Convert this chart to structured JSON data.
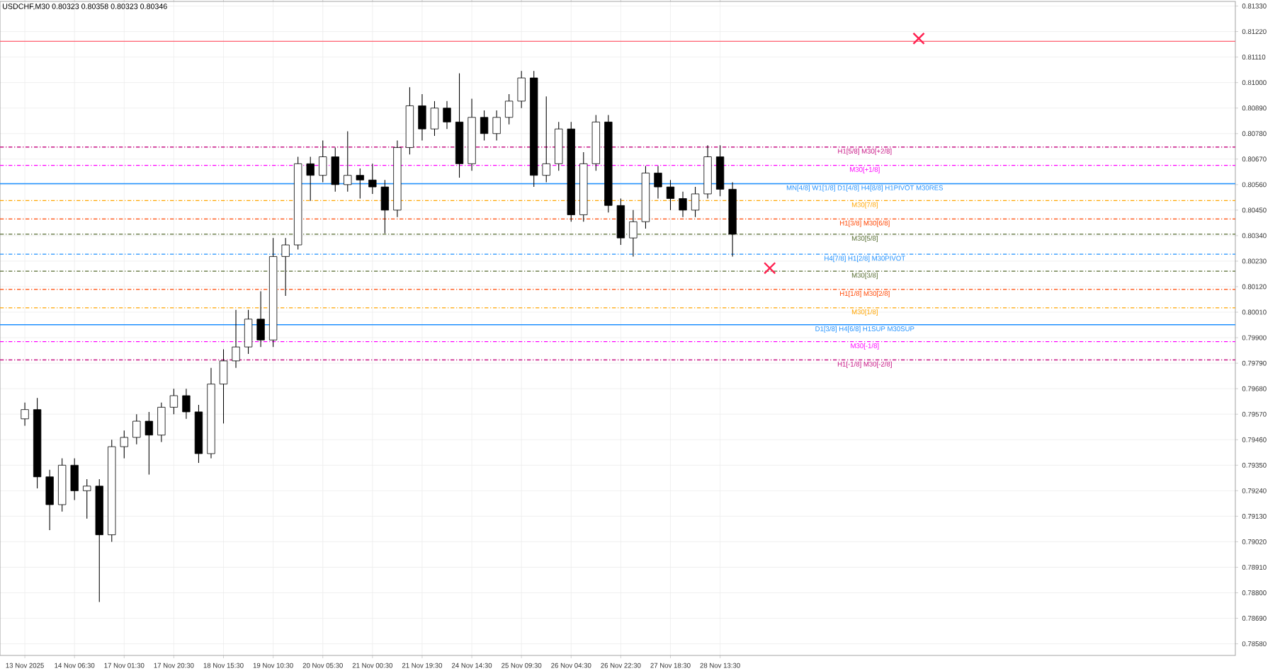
{
  "chart_data": {
    "type": "candlestick",
    "title": "USDCHF,M30 0.80323 0.80358 0.80323 0.80346",
    "categories": [
      "13 Nov 2025",
      null,
      null,
      null,
      "14 Nov 06:30",
      null,
      null,
      null,
      "17 Nov 01:30",
      null,
      null,
      null,
      "17 Nov 20:30",
      null,
      null,
      null,
      "18 Nov 15:30",
      null,
      null,
      null,
      "19 Nov 10:30",
      null,
      null,
      null,
      "20 Nov 05:30",
      null,
      null,
      null,
      "21 Nov 00:30",
      null,
      null,
      null,
      "21 Nov 19:30",
      null,
      null,
      null,
      "24 Nov 14:30",
      null,
      null,
      null,
      "25 Nov 09:30",
      null,
      null,
      null,
      "26 Nov 04:30",
      null,
      null,
      null,
      "26 Nov 22:30",
      null,
      null,
      null,
      "27 Nov 18:30",
      null,
      null,
      null,
      "28 Nov 13:30",
      null,
      null,
      null,
      null,
      null,
      null,
      null,
      null,
      null,
      null,
      null,
      null,
      null,
      null,
      null,
      null,
      null,
      null,
      null,
      null,
      null,
      null,
      null,
      null,
      null,
      null,
      null,
      null,
      null,
      null,
      null,
      null,
      null,
      null,
      null,
      null,
      null,
      null,
      null,
      null,
      null
    ],
    "ohlc": [
      [
        0.7955,
        0.7962,
        0.7952,
        0.7959
      ],
      [
        0.7959,
        0.7964,
        0.7925,
        0.793
      ],
      [
        0.793,
        0.7933,
        0.7907,
        0.7918
      ],
      [
        0.7918,
        0.7938,
        0.7915,
        0.7935
      ],
      [
        0.7935,
        0.7938,
        0.792,
        0.7924
      ],
      [
        0.7924,
        0.7929,
        0.7912,
        0.7926
      ],
      [
        0.7926,
        0.7929,
        0.7876,
        0.7905
      ],
      [
        0.7905,
        0.7946,
        0.7902,
        0.7943
      ],
      [
        0.7943,
        0.795,
        0.7938,
        0.7947
      ],
      [
        0.7947,
        0.7957,
        0.7944,
        0.7954
      ],
      [
        0.7954,
        0.7958,
        0.7931,
        0.7948
      ],
      [
        0.7948,
        0.7962,
        0.7945,
        0.796
      ],
      [
        0.796,
        0.7968,
        0.7957,
        0.7965
      ],
      [
        0.7965,
        0.7968,
        0.7955,
        0.7958
      ],
      [
        0.7958,
        0.7961,
        0.7936,
        0.794
      ],
      [
        0.794,
        0.7977,
        0.7938,
        0.797
      ],
      [
        0.797,
        0.7985,
        0.7953,
        0.798
      ],
      [
        0.798,
        0.8002,
        0.7977,
        0.7986
      ],
      [
        0.7986,
        0.8002,
        0.7983,
        0.7998
      ],
      [
        0.7998,
        0.801,
        0.7986,
        0.7989
      ],
      [
        0.7989,
        0.8033,
        0.7986,
        0.8025
      ],
      [
        0.8025,
        0.8033,
        0.8008,
        0.803
      ],
      [
        0.803,
        0.8068,
        0.8028,
        0.8065
      ],
      [
        0.8065,
        0.8068,
        0.8049,
        0.806
      ],
      [
        0.806,
        0.8075,
        0.8057,
        0.8068
      ],
      [
        0.8068,
        0.8072,
        0.8053,
        0.8056
      ],
      [
        0.8056,
        0.8079,
        0.8053,
        0.806
      ],
      [
        0.806,
        0.8063,
        0.805,
        0.8058
      ],
      [
        0.8058,
        0.8065,
        0.8052,
        0.8055
      ],
      [
        0.8055,
        0.8058,
        0.8035,
        0.8045
      ],
      [
        0.8045,
        0.8075,
        0.8042,
        0.8072
      ],
      [
        0.8072,
        0.8098,
        0.8069,
        0.809
      ],
      [
        0.809,
        0.8095,
        0.8075,
        0.808
      ],
      [
        0.808,
        0.8092,
        0.8077,
        0.8089
      ],
      [
        0.8089,
        0.8092,
        0.808,
        0.8083
      ],
      [
        0.8083,
        0.8104,
        0.8059,
        0.8065
      ],
      [
        0.8065,
        0.8093,
        0.8062,
        0.8085
      ],
      [
        0.8085,
        0.8088,
        0.8075,
        0.8078
      ],
      [
        0.8078,
        0.8088,
        0.8075,
        0.8085
      ],
      [
        0.8085,
        0.8095,
        0.8082,
        0.8092
      ],
      [
        0.8092,
        0.8105,
        0.8089,
        0.8102
      ],
      [
        0.8102,
        0.8105,
        0.8055,
        0.806
      ],
      [
        0.806,
        0.8094,
        0.8057,
        0.8065
      ],
      [
        0.8065,
        0.8083,
        0.8062,
        0.808
      ],
      [
        0.808,
        0.8083,
        0.804,
        0.8043
      ],
      [
        0.8043,
        0.807,
        0.804,
        0.8065
      ],
      [
        0.8065,
        0.8086,
        0.8062,
        0.8083
      ],
      [
        0.8083,
        0.8086,
        0.8044,
        0.8047
      ],
      [
        0.8047,
        0.805,
        0.803,
        0.8033
      ],
      [
        0.8033,
        0.8045,
        0.8025,
        0.804
      ],
      [
        0.804,
        0.8064,
        0.8037,
        0.8061
      ],
      [
        0.8061,
        0.8064,
        0.805,
        0.8055
      ],
      [
        0.8055,
        0.8058,
        0.8045,
        0.805
      ],
      [
        0.805,
        0.8053,
        0.8042,
        0.8045
      ],
      [
        0.8045,
        0.8055,
        0.8042,
        0.8052
      ],
      [
        0.8052,
        0.8073,
        0.805,
        0.8068
      ],
      [
        0.8068,
        0.8073,
        0.8051,
        0.8054
      ],
      [
        0.8054,
        0.8057,
        0.8025,
        0.80346
      ],
      null,
      null,
      null,
      null,
      null,
      null,
      null,
      null,
      null,
      null,
      null,
      null,
      null,
      null,
      null,
      null,
      null,
      null,
      null,
      null,
      null,
      null,
      null,
      null,
      null,
      null,
      null,
      null,
      null,
      null,
      null,
      null,
      null,
      null,
      null,
      null,
      null,
      null,
      null,
      null
    ],
    "series": [
      {
        "type": "scatter",
        "marker": "cross",
        "color": "#ff2050",
        "values": [
          null,
          null,
          null,
          null,
          null,
          null,
          null,
          null,
          null,
          null,
          null,
          null,
          null,
          null,
          null,
          null,
          null,
          null,
          null,
          null,
          null,
          null,
          null,
          null,
          null,
          null,
          null,
          null,
          null,
          null,
          null,
          null,
          null,
          null,
          null,
          null,
          null,
          null,
          null,
          null,
          null,
          null,
          null,
          null,
          null,
          null,
          null,
          null,
          null,
          null,
          null,
          null,
          null,
          null,
          null,
          null,
          null,
          null,
          null,
          null,
          0.802,
          null,
          null,
          null,
          null,
          null,
          null,
          null,
          null,
          null,
          null,
          null,
          0.8119,
          null,
          null,
          null,
          null,
          null,
          null,
          null,
          null,
          null,
          null,
          null,
          null,
          null,
          null,
          null,
          null,
          null,
          null,
          null,
          null,
          null,
          null,
          null,
          null,
          null
        ]
      }
    ],
    "ylim": [
      0.7853,
      0.8135
    ],
    "yticks": [
      {
        "value": 0.8133,
        "label": "0.81330"
      },
      {
        "value": 0.8122,
        "label": "0.81220"
      },
      {
        "value": 0.8111,
        "label": "0.81110"
      },
      {
        "value": 0.81,
        "label": "0.81000"
      },
      {
        "value": 0.8089,
        "label": "0.80890"
      },
      {
        "value": 0.8078,
        "label": "0.80780"
      },
      {
        "value": 0.8067,
        "label": "0.80670"
      },
      {
        "value": 0.8056,
        "label": "0.80560"
      },
      {
        "value": 0.8045,
        "label": "0.80450"
      },
      {
        "value": 0.8034,
        "label": "0.80340"
      },
      {
        "value": 0.8023,
        "label": "0.80230"
      },
      {
        "value": 0.8012,
        "label": "0.80120"
      },
      {
        "value": 0.8001,
        "label": "0.80010"
      },
      {
        "value": 0.799,
        "label": "0.79900"
      },
      {
        "value": 0.7979,
        "label": "0.79790"
      },
      {
        "value": 0.7968,
        "label": "0.79680"
      },
      {
        "value": 0.7957,
        "label": "0.79570"
      },
      {
        "value": 0.7946,
        "label": "0.79460"
      },
      {
        "value": 0.7935,
        "label": "0.79350"
      },
      {
        "value": 0.7924,
        "label": "0.79240"
      },
      {
        "value": 0.7913,
        "label": "0.79130"
      },
      {
        "value": 0.7902,
        "label": "0.79020"
      },
      {
        "value": 0.7891,
        "label": "0.78910"
      },
      {
        "value": 0.788,
        "label": "0.78800"
      },
      {
        "value": 0.7869,
        "label": "0.78690"
      },
      {
        "value": 0.7858,
        "label": "0.78580"
      }
    ],
    "grid": true,
    "ref_lines": [
      {
        "axis": "y",
        "value": 0.81178,
        "color": "#ff6070",
        "line_style": "solid"
      },
      {
        "axis": "y",
        "value": 0.80722,
        "label": "H1[5/8] M30[+2/8]",
        "color": "#c71585",
        "line_style": "dashed"
      },
      {
        "axis": "y",
        "value": 0.80643,
        "label": "M30[+1/8]",
        "color": "#ff00ff",
        "line_style": "dashed"
      },
      {
        "axis": "y",
        "value": 0.80564,
        "label": "MN[4/8] W1[1/8] D1[4/8] H4[8/8] H1PIVOT M30RES",
        "color": "#1e90ff",
        "line_style": "solid"
      },
      {
        "axis": "y",
        "value": 0.80491,
        "label": "M30[7/8]",
        "color": "#ffa500",
        "line_style": "dashed"
      },
      {
        "axis": "y",
        "value": 0.80412,
        "label": "H1[3/8] M30[6/8]",
        "color": "#ff4500",
        "line_style": "dashed"
      },
      {
        "axis": "y",
        "value": 0.80346,
        "label": "M30[5/8]",
        "color": "#556b2f",
        "line_style": "dashed"
      },
      {
        "axis": "y",
        "value": 0.8026,
        "label": "H4[7/8] H1[2/8] M30PIVOT",
        "color": "#1e90ff",
        "line_style": "dashed"
      },
      {
        "axis": "y",
        "value": 0.80187,
        "label": "M30[3/8]",
        "color": "#556b2f",
        "line_style": "dashed"
      },
      {
        "axis": "y",
        "value": 0.80108,
        "label": "H1[1/8] M30[2/8]",
        "color": "#ff4500",
        "line_style": "dashed"
      },
      {
        "axis": "y",
        "value": 0.80029,
        "label": "M30[1/8]",
        "color": "#ffa500",
        "line_style": "dashed"
      },
      {
        "axis": "y",
        "value": 0.79956,
        "label": "D1[3/8] H4[6/8] H1SUP M30SUP",
        "color": "#1e90ff",
        "line_style": "solid"
      },
      {
        "axis": "y",
        "value": 0.79883,
        "label": "M30[-1/8]",
        "color": "#ff00ff",
        "line_style": "dashed"
      },
      {
        "axis": "y",
        "value": 0.79804,
        "label": "H1[-1/8] M30[-2/8]",
        "color": "#c71585",
        "line_style": "dashed"
      }
    ]
  }
}
